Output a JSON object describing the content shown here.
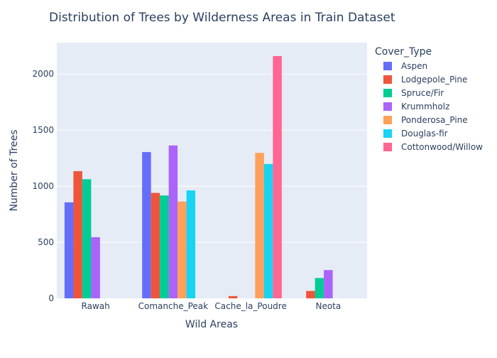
{
  "chart_data": {
    "type": "bar",
    "title": "Distribution of Trees by Wilderness Areas in Train Dataset",
    "xlabel": "Wild Areas",
    "ylabel": "Number of Trees",
    "legend_title": "Cover_Type",
    "legend_position": "right",
    "grid": true,
    "ylim": [
      0,
      2280
    ],
    "yticks": [
      0,
      500,
      1000,
      1500,
      2000
    ],
    "categories": [
      "Rawah",
      "Comanche_Peak",
      "Cache_la_Poudre",
      "Neota"
    ],
    "series": [
      {
        "name": "Aspen",
        "color": "#636efa",
        "values": [
          856,
          1304,
          0,
          0
        ]
      },
      {
        "name": "Lodgepole_Pine",
        "color": "#EF553B",
        "values": [
          1134,
          940,
          20,
          66
        ]
      },
      {
        "name": "Spruce/Fir",
        "color": "#00cc96",
        "values": [
          1062,
          917,
          0,
          181
        ]
      },
      {
        "name": "Krummholz",
        "color": "#ab63fa",
        "values": [
          545,
          1363,
          0,
          252
        ]
      },
      {
        "name": "Ponderosa_Pine",
        "color": "#FFA15A",
        "values": [
          0,
          863,
          1297,
          0
        ]
      },
      {
        "name": "Douglas-fir",
        "color": "#19d3f3",
        "values": [
          0,
          962,
          1198,
          0
        ]
      },
      {
        "name": "Cottonwood/Willow",
        "color": "#FF6692",
        "values": [
          0,
          0,
          2160,
          0
        ]
      }
    ]
  }
}
